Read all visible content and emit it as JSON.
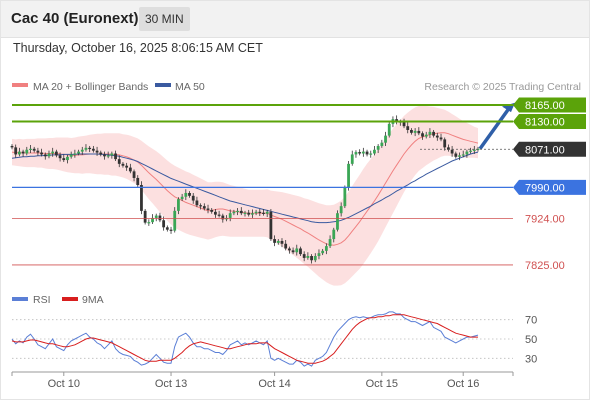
{
  "header": {
    "title": "Cac 40 (Euronext)",
    "timeframe": "30 MIN",
    "datetime": "Thursday, October 16, 2025 8:06:15 AM CET"
  },
  "credit": "Research © 2025 Trading Central",
  "colors": {
    "resistance": "#5ba30a",
    "support_strong": "#3b73e0",
    "support": "#d05050",
    "pivot": "#333333",
    "bollinger_fill": "#fbd6d6",
    "ma20": "#f08080",
    "ma50": "#3a5aa0",
    "candle": "#333333",
    "rsi": "#5b7fd6",
    "rsi_ma": "#d81e1e",
    "arrow": "#2f5fa8"
  },
  "chart_data": [
    {
      "type": "candlestick",
      "legend": [
        {
          "name": "MA 20 + Bollinger Bands",
          "color": "#f08080"
        },
        {
          "name": "MA 50",
          "color": "#3a5aa0"
        }
      ],
      "x_ticks": [
        "Oct 10",
        "Oct 13",
        "Oct 14",
        "Oct 15",
        "Oct 16"
      ],
      "ylim": [
        7810,
        8180
      ],
      "levels": [
        {
          "label": "8165.00",
          "value": 8165,
          "kind": "resistance"
        },
        {
          "label": "8130.00",
          "value": 8130,
          "kind": "resistance"
        },
        {
          "label": "8071.00",
          "value": 8071,
          "kind": "pivot"
        },
        {
          "label": "7990.00",
          "value": 7990,
          "kind": "support_strong"
        },
        {
          "label": "7924.00",
          "value": 7924,
          "kind": "support"
        },
        {
          "label": "7825.00",
          "value": 7825,
          "kind": "support"
        }
      ],
      "close": [
        8075,
        8060,
        8066,
        8062,
        8070,
        8072,
        8068,
        8064,
        8060,
        8056,
        8062,
        8066,
        8058,
        8052,
        8048,
        8055,
        8060,
        8062,
        8066,
        8070,
        8074,
        8072,
        8068,
        8064,
        8060,
        8056,
        8058,
        8062,
        8050,
        8040,
        8036,
        8032,
        8024,
        8010,
        7995,
        7940,
        7915,
        7916,
        7925,
        7930,
        7920,
        7905,
        7900,
        7898,
        7940,
        7965,
        7970,
        7978,
        7972,
        7962,
        7952,
        7950,
        7945,
        7942,
        7938,
        7932,
        7930,
        7922,
        7925,
        7935,
        7938,
        7940,
        7935,
        7936,
        7932,
        7935,
        7938,
        7936,
        7934,
        7938,
        7880,
        7872,
        7876,
        7870,
        7860,
        7856,
        7852,
        7860,
        7848,
        7840,
        7844,
        7835,
        7844,
        7850,
        7855,
        7865,
        7880,
        7900,
        7935,
        7950,
        7990,
        8040,
        8060,
        8065,
        8062,
        8066,
        8060,
        8062,
        8070,
        8078,
        8085,
        8100,
        8125,
        8135,
        8128,
        8130,
        8120,
        8112,
        8106,
        8110,
        8105,
        8098,
        8102,
        8108,
        8100,
        8096,
        8092,
        8075,
        8070,
        8062,
        8055,
        8058,
        8060,
        8066,
        8068,
        8070,
        8072
      ],
      "ma20": [
        8065,
        8064,
        8064,
        8063,
        8063,
        8063,
        8063,
        8063,
        8063,
        8062,
        8062,
        8062,
        8062,
        8061,
        8060,
        8059,
        8058,
        8058,
        8059,
        8059,
        8060,
        8061,
        8061,
        8061,
        8061,
        8061,
        8061,
        8060,
        8060,
        8059,
        8057,
        8055,
        8052,
        8048,
        8044,
        8037,
        8029,
        8021,
        8014,
        8007,
        7999,
        7991,
        7983,
        7976,
        7970,
        7966,
        7962,
        7958,
        7955,
        7952,
        7949,
        7946,
        7943,
        7940,
        7941,
        7943,
        7944,
        7944,
        7942,
        7940,
        7939,
        7938,
        7937,
        7936,
        7935,
        7935,
        7935,
        7935,
        7935,
        7935,
        7931,
        7928,
        7925,
        7922,
        7918,
        7914,
        7910,
        7906,
        7902,
        7897,
        7893,
        7888,
        7883,
        7878,
        7874,
        7870,
        7868,
        7867,
        7869,
        7872,
        7878,
        7887,
        7897,
        7907,
        7917,
        7928,
        7939,
        7950,
        7961,
        7973,
        7986,
        7999,
        8012,
        8025,
        8037,
        8049,
        8061,
        8071,
        8080,
        8088,
        8094,
        8097,
        8100,
        8102,
        8104,
        8105,
        8106,
        8106,
        8104,
        8101,
        8098,
        8095,
        8092,
        8090,
        8088,
        8086,
        8084
      ],
      "ma50": [
        8052,
        8053,
        8054,
        8055,
        8055,
        8056,
        8056,
        8057,
        8057,
        8058,
        8058,
        8059,
        8059,
        8059,
        8060,
        8060,
        8060,
        8060,
        8061,
        8061,
        8061,
        8061,
        8061,
        8061,
        8060,
        8060,
        8059,
        8058,
        8057,
        8056,
        8054,
        8052,
        8050,
        8048,
        8045,
        8041,
        8037,
        8033,
        8029,
        8025,
        8021,
        8017,
        8013,
        8009,
        8006,
        8003,
        8000,
        7997,
        7994,
        7991,
        7988,
        7985,
        7982,
        7979,
        7976,
        7973,
        7970,
        7967,
        7964,
        7961,
        7959,
        7957,
        7955,
        7953,
        7951,
        7949,
        7947,
        7945,
        7943,
        7941,
        7939,
        7937,
        7935,
        7933,
        7931,
        7929,
        7927,
        7925,
        7923,
        7921,
        7919,
        7917,
        7916,
        7915,
        7915,
        7915,
        7916,
        7917,
        7918,
        7920,
        7923,
        7926,
        7930,
        7934,
        7938,
        7942,
        7946,
        7950,
        7955,
        7959,
        7963,
        7968,
        7972,
        7977,
        7982,
        7986,
        7991,
        7995,
        8000,
        8004,
        8009,
        8013,
        8018,
        8022,
        8026,
        8030,
        8034,
        8038,
        8042,
        8046,
        8049,
        8052,
        8055,
        8058,
        8061,
        8063,
        8065
      ],
      "bb_half_width": [
        28,
        28,
        29,
        29,
        30,
        30,
        30,
        31,
        31,
        32,
        33,
        33,
        34,
        35,
        36,
        37,
        37,
        38,
        39,
        40,
        40,
        41,
        42,
        43,
        43,
        44,
        44,
        45,
        45,
        46,
        46,
        47,
        48,
        49,
        50,
        52,
        54,
        56,
        58,
        60,
        62,
        63,
        64,
        65,
        66,
        66,
        66,
        66,
        66,
        65,
        64,
        63,
        62,
        61,
        60,
        59,
        58,
        57,
        56,
        55,
        54,
        53,
        52,
        51,
        50,
        50,
        50,
        50,
        50,
        51,
        52,
        54,
        56,
        58,
        60,
        62,
        64,
        66,
        68,
        70,
        72,
        74,
        76,
        78,
        80,
        82,
        84,
        86,
        88,
        90,
        92,
        94,
        96,
        98,
        100,
        101,
        101,
        100,
        99,
        98,
        96,
        94,
        92,
        90,
        87,
        84,
        81,
        78,
        75,
        72,
        69,
        66,
        63,
        60,
        57,
        54,
        51,
        49,
        47,
        45,
        43,
        41,
        39,
        37,
        35,
        33,
        32
      ]
    },
    {
      "type": "line",
      "legend": [
        {
          "name": "RSI",
          "color": "#5b7fd6"
        },
        {
          "name": "9MA",
          "color": "#d81e1e"
        }
      ],
      "y_ticks": [
        "70",
        "50",
        "30"
      ],
      "ylim": [
        20,
        80
      ],
      "rsi": [
        50,
        45,
        48,
        46,
        52,
        55,
        50,
        44,
        42,
        40,
        45,
        50,
        42,
        40,
        38,
        44,
        48,
        50,
        52,
        54,
        56,
        52,
        50,
        46,
        44,
        40,
        44,
        48,
        40,
        36,
        34,
        33,
        32,
        28,
        26,
        23,
        24,
        26,
        30,
        34,
        30,
        26,
        25,
        25,
        42,
        52,
        54,
        56,
        52,
        46,
        42,
        42,
        40,
        40,
        38,
        36,
        36,
        34,
        38,
        44,
        46,
        48,
        44,
        46,
        44,
        46,
        48,
        46,
        44,
        48,
        30,
        28,
        30,
        28,
        26,
        24,
        24,
        28,
        26,
        22,
        24,
        22,
        28,
        30,
        32,
        36,
        44,
        52,
        58,
        62,
        66,
        70,
        72,
        73,
        72,
        73,
        72,
        72,
        74,
        75,
        75,
        76,
        78,
        78,
        76,
        76,
        72,
        70,
        68,
        68,
        66,
        64,
        66,
        68,
        62,
        60,
        58,
        52,
        50,
        48,
        46,
        48,
        50,
        52,
        52,
        53,
        54
      ],
      "rsi_ma": [
        48,
        47,
        47,
        47,
        48,
        49,
        49,
        48,
        47,
        46,
        45,
        45,
        44,
        43,
        42,
        42,
        43,
        44,
        46,
        48,
        50,
        51,
        51,
        50,
        49,
        48,
        47,
        46,
        44,
        42,
        40,
        38,
        36,
        34,
        32,
        30,
        28,
        27,
        27,
        27,
        28,
        28,
        28,
        28,
        30,
        33,
        36,
        40,
        43,
        45,
        46,
        47,
        46,
        45,
        44,
        43,
        42,
        41,
        40,
        40,
        41,
        42,
        43,
        44,
        45,
        45,
        45,
        46,
        46,
        46,
        43,
        40,
        38,
        36,
        34,
        32,
        30,
        28,
        27,
        26,
        25,
        25,
        25,
        26,
        27,
        29,
        32,
        35,
        40,
        45,
        50,
        55,
        60,
        64,
        67,
        69,
        71,
        72,
        72,
        73,
        73,
        74,
        74,
        75,
        75,
        75,
        75,
        74,
        73,
        72,
        71,
        70,
        69,
        68,
        67,
        66,
        64,
        62,
        60,
        58,
        56,
        55,
        54,
        53,
        52,
        52,
        52
      ]
    }
  ]
}
